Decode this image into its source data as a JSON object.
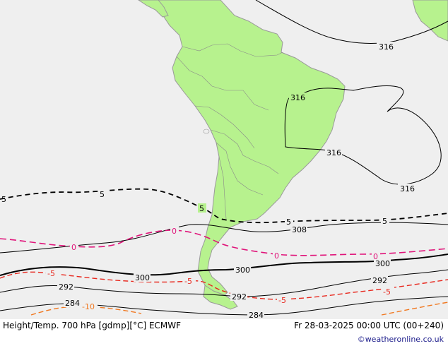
{
  "footer": {
    "title": "Height/Temp. 700 hPa [gdmp][°C] ECMWF",
    "valid_time": "Fr 28-03-2025 00:00 UTC (00+240)",
    "credit": "©weatheronline.co.uk"
  },
  "colors": {
    "ocean": "#efefef",
    "land": "#b7f28e",
    "coast": "#9a9a9a",
    "height_contour": "#000000",
    "temp_contour_pos": "#000000",
    "temp_zero": "#e0147a",
    "temp_minus5": "#e8281e",
    "temp_minus10": "#f07820"
  },
  "labels": {
    "h316_a": "316",
    "h316_b": "316",
    "h316_c": "316",
    "h316_d": "316",
    "h308": "308",
    "h300_a": "300",
    "h300_b": "300",
    "h300_c": "300",
    "h292_a": "292",
    "h292_b": "292",
    "h292_c": "292",
    "h284_a": "284",
    "h284_b": "284",
    "t5_a": "5",
    "t5_b": "5",
    "t5_c": "5",
    "t5_d": "5",
    "t5_e": "5",
    "t0_a": "0",
    "t0_b": "0",
    "t0_c": "0",
    "t0_d": "0",
    "tm5_a": "-5",
    "tm5_b": "-5",
    "tm5_c": "-5",
    "tm5_d": "-5",
    "tm10_a": "-10"
  }
}
